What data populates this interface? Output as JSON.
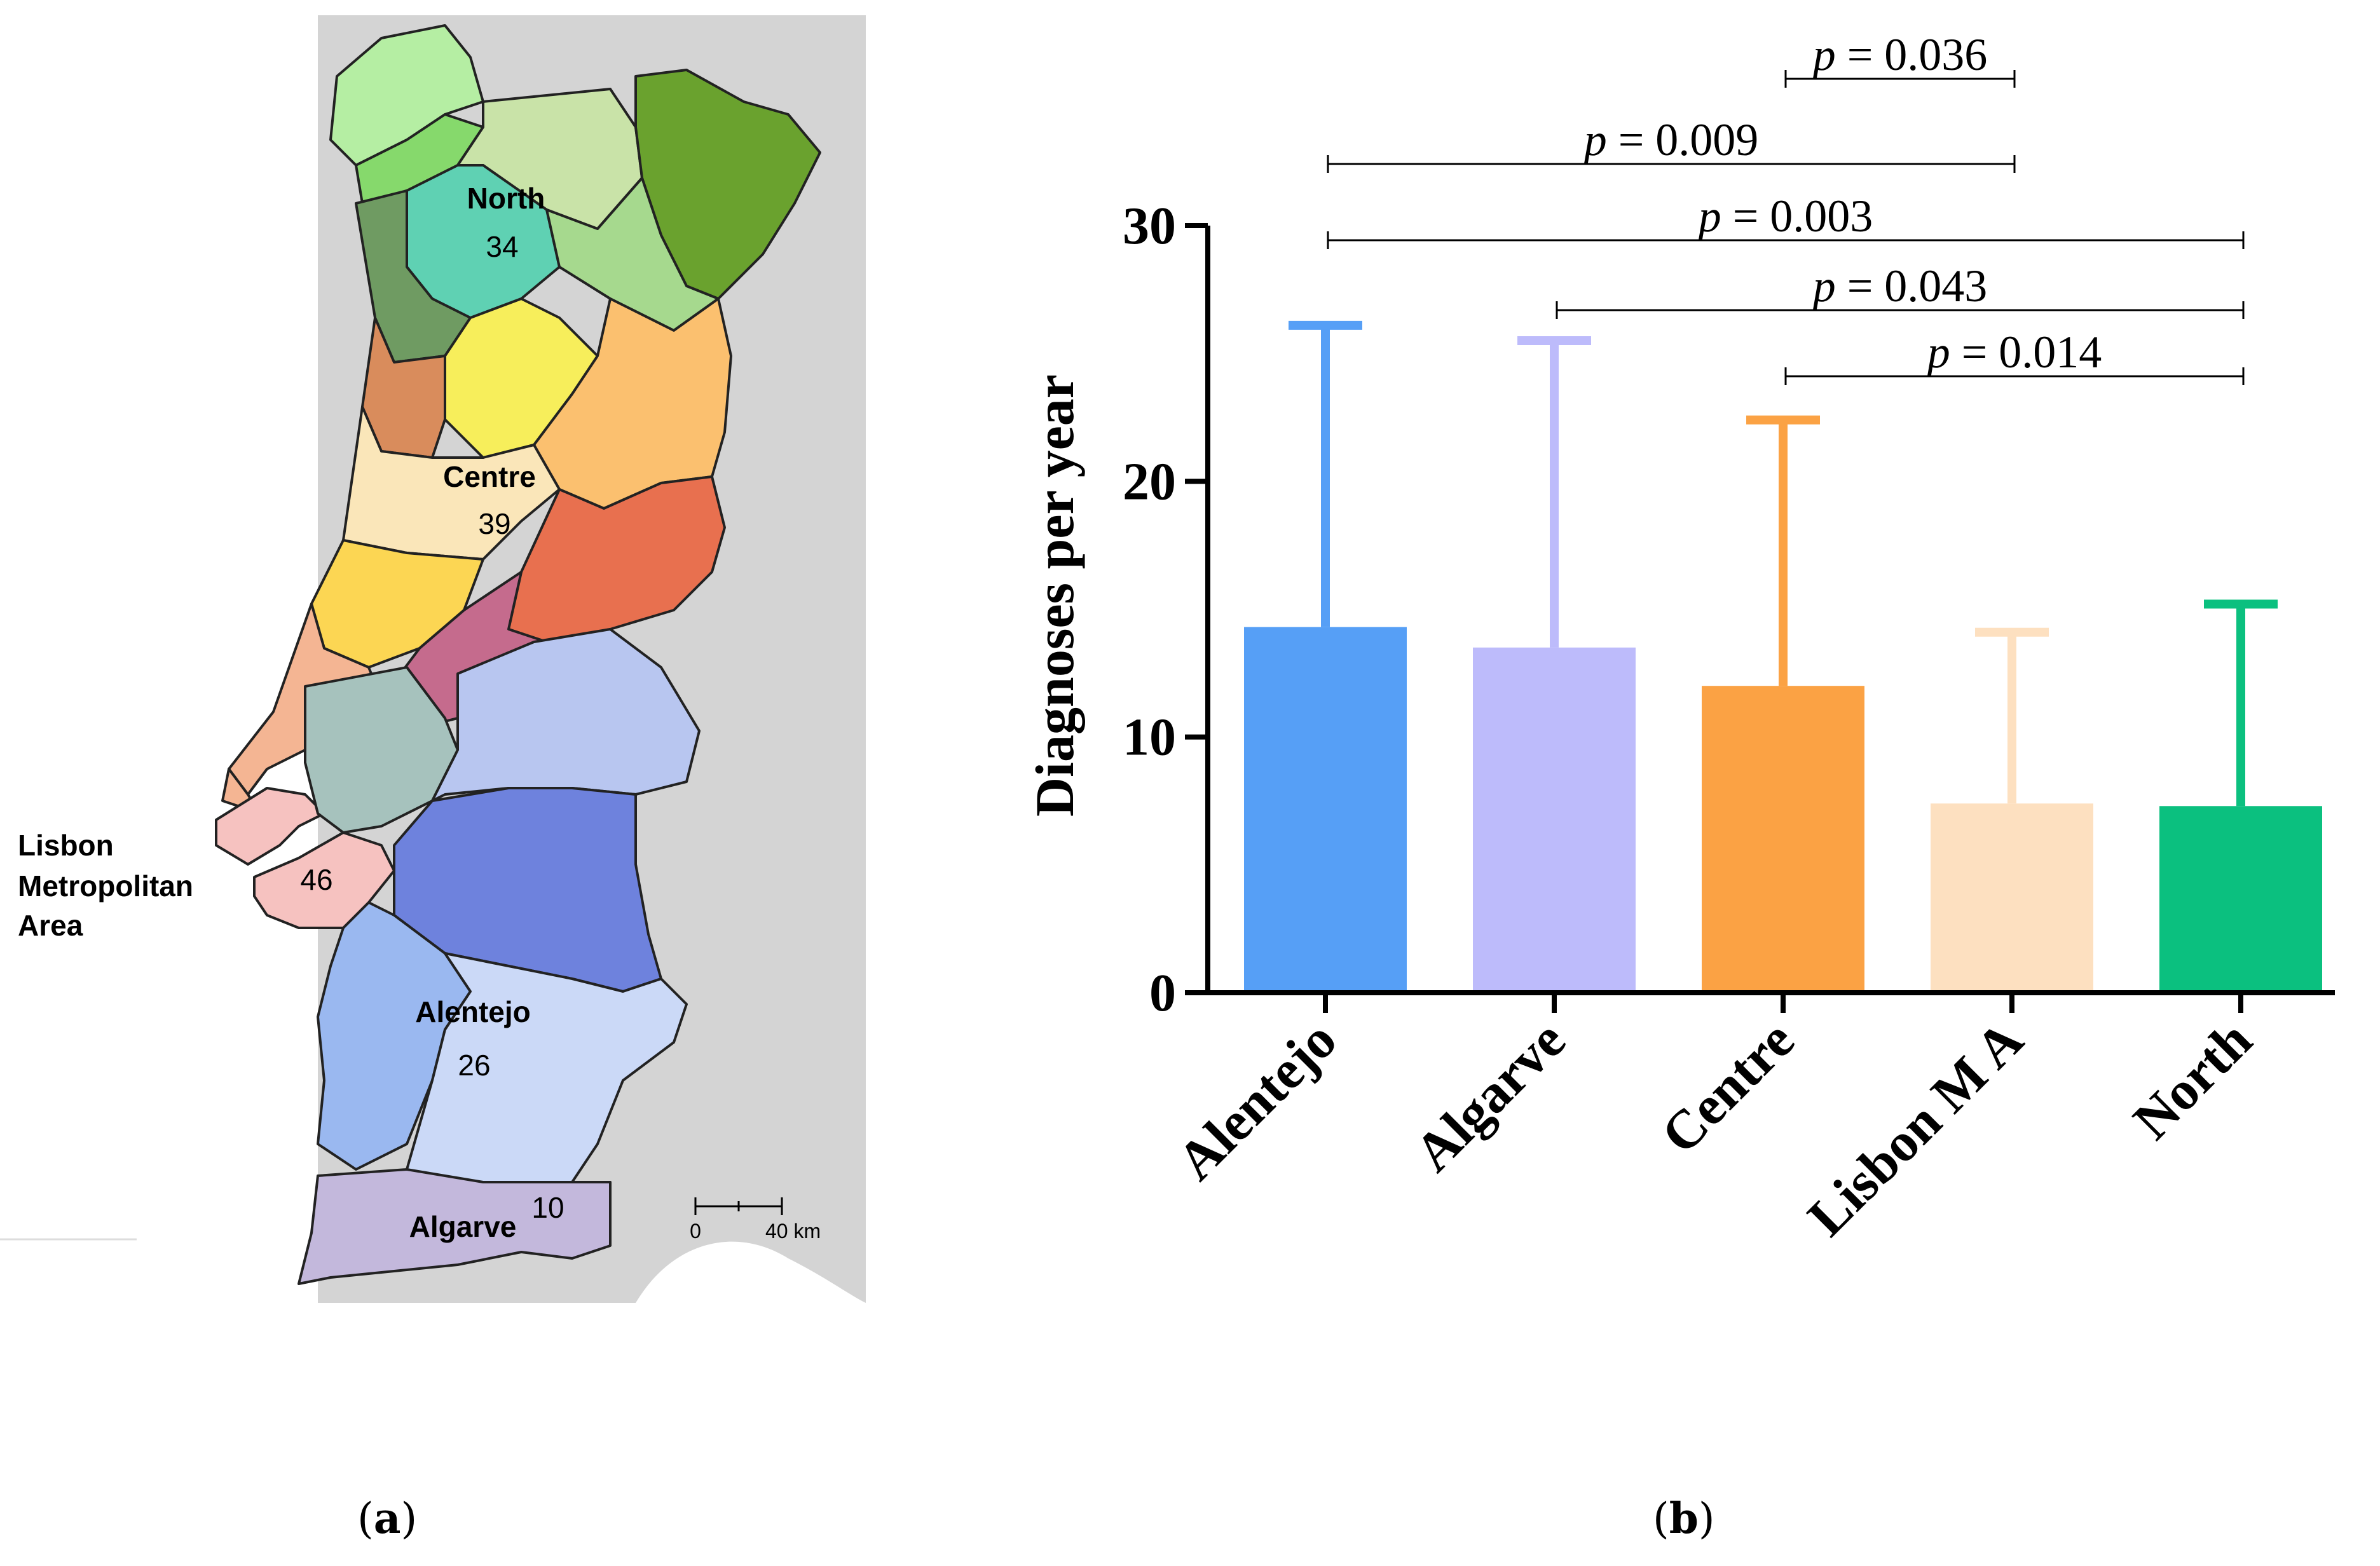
{
  "panel_labels": {
    "a": "a",
    "b": "b"
  },
  "map": {
    "regions": [
      {
        "name": "North",
        "count": "34"
      },
      {
        "name": "Centre",
        "count": "39"
      },
      {
        "name": "Alentejo",
        "count": "26"
      },
      {
        "name": "Algarve",
        "count": "10"
      }
    ],
    "lisbon": {
      "line1": "Lisbon",
      "line2": "Metropolitan",
      "line3": "Area",
      "count": "46"
    },
    "scale": {
      "start": "0",
      "end": "40 km"
    },
    "colors": {
      "sea": "#d4d4d4",
      "spain": "#ffffff",
      "north": [
        "#b5eea3",
        "#86d96c",
        "#c9e3a8",
        "#6aa22e",
        "#5fd1b3",
        "#6f9b62",
        "#a6d98e"
      ],
      "centre": [
        "#f7ee5b",
        "#d98c5c",
        "#fbc06f",
        "#fae6b9",
        "#fcd653",
        "#e8704f",
        "#c56b8d",
        "#f4b593"
      ],
      "lisbon": "#f6c2c0",
      "alentejo": [
        "#a6c2bd",
        "#b8c6f0",
        "#6e82dd",
        "#9ab8f0",
        "#cbd9f7"
      ],
      "algarve": "#c3b8dc"
    }
  },
  "chart_data": {
    "type": "bar",
    "ylabel": "Diagnoses per year",
    "ylim": [
      0,
      30
    ],
    "yticks": [
      0,
      10,
      20,
      30
    ],
    "categories": [
      "Alentejo",
      "Algarve",
      "Centre",
      "Lisbon M A",
      "North"
    ],
    "values": [
      14.3,
      13.5,
      12.0,
      7.4,
      7.3
    ],
    "error_upper": [
      26.1,
      25.5,
      22.4,
      14.1,
      15.2
    ],
    "colors": [
      "#569ff6",
      "#bdbbfb",
      "#fba244",
      "#fde0c0",
      "#0bc07f"
    ],
    "significance": [
      {
        "from": 2,
        "to": 3,
        "p_label": "p",
        "p_value": " = 0.036"
      },
      {
        "from": 0,
        "to": 3,
        "p_label": "p",
        "p_value": " = 0.009"
      },
      {
        "from": 0,
        "to": 4,
        "p_label": "p",
        "p_value": " = 0.003"
      },
      {
        "from": 1,
        "to": 4,
        "p_label": "p",
        "p_value": " = 0.043"
      },
      {
        "from": 2,
        "to": 4,
        "p_label": "p",
        "p_value": " = 0.014"
      }
    ]
  }
}
